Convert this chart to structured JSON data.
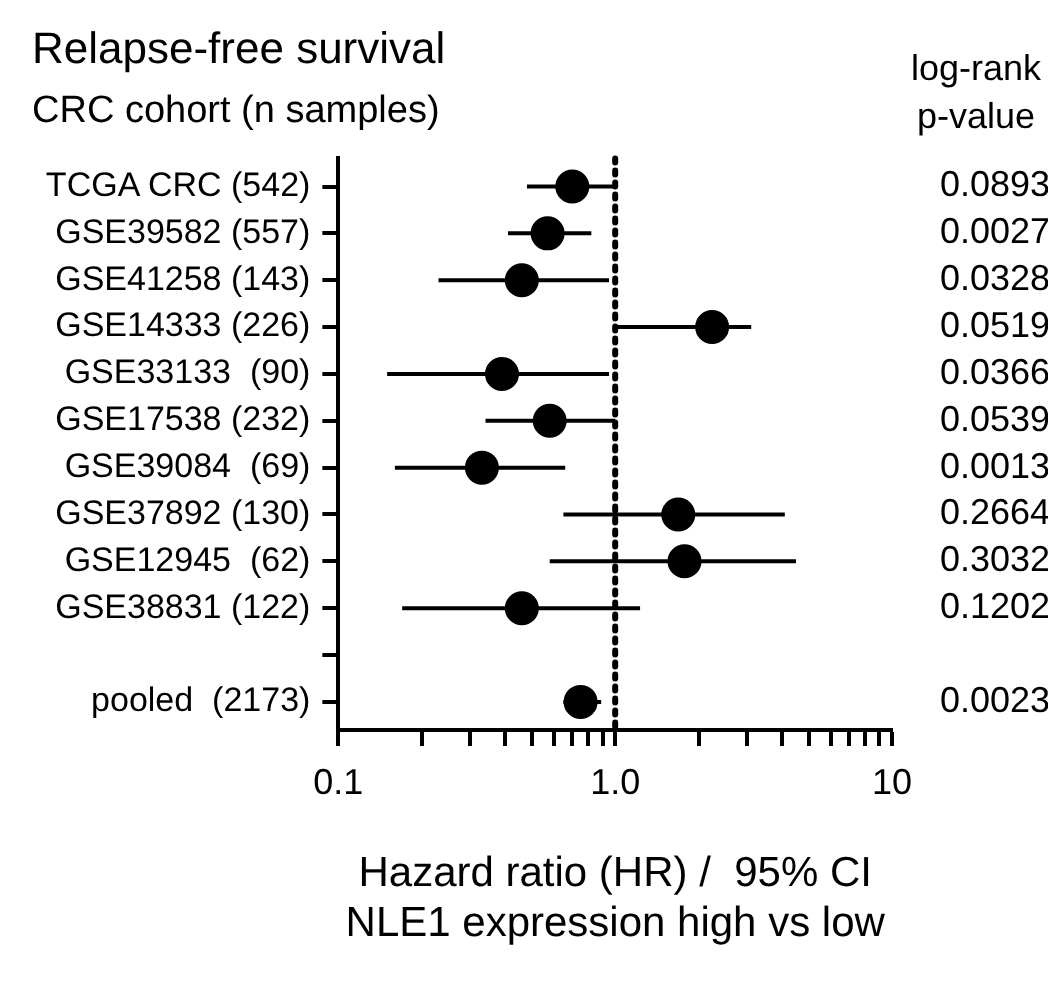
{
  "chart_data": {
    "type": "scatter",
    "title": "Relapse-free survival",
    "subtitle": "CRC cohort (n samples)",
    "xlabel": "Hazard ratio (HR) /  95% CI\nNLE1 expression high vs low",
    "orientation": "horizontal",
    "categories": [
      "TCGA CRC (542)",
      "GSE39582 (557)",
      "GSE41258 (143)",
      "GSE14333 (226)",
      "GSE33133  (90)",
      "GSE17538 (232)",
      "GSE39084  (69)",
      "GSE37892 (130)",
      "GSE12945  (62)",
      "GSE38831 (122)",
      null,
      "pooled  (2173)"
    ],
    "series": [
      {
        "color": "#000000",
        "values": [
          0.7,
          0.57,
          0.46,
          2.24,
          0.39,
          0.58,
          0.33,
          1.69,
          1.78,
          0.46,
          null,
          0.75
        ],
        "errors": [
          [
            0.48,
            1.0
          ],
          [
            0.41,
            0.82
          ],
          [
            0.23,
            0.95
          ],
          [
            0.99,
            3.1
          ],
          [
            0.15,
            0.95
          ],
          [
            0.34,
            1.0
          ],
          [
            0.16,
            0.66
          ],
          [
            0.65,
            4.1
          ],
          [
            0.58,
            4.5
          ],
          [
            0.17,
            1.23
          ],
          null,
          [
            0.65,
            0.89
          ]
        ]
      }
    ],
    "log": "x",
    "xlim": [
      0.1,
      10
    ],
    "xticks": [
      0.1,
      {
        "value": 0.2,
        "label": null
      },
      {
        "value": 0.3,
        "label": null
      },
      {
        "value": 0.4,
        "label": null
      },
      {
        "value": 0.5,
        "label": null
      },
      {
        "value": 0.6,
        "label": null
      },
      {
        "value": 0.7,
        "label": null
      },
      {
        "value": 0.8,
        "label": null
      },
      {
        "value": 0.9,
        "label": null
      },
      {
        "value": 1,
        "label": "1.0"
      },
      {
        "value": 2,
        "label": null
      },
      {
        "value": 3,
        "label": null
      },
      {
        "value": 4,
        "label": null
      },
      {
        "value": 5,
        "label": null
      },
      {
        "value": 6,
        "label": null
      },
      {
        "value": 7,
        "label": null
      },
      {
        "value": 8,
        "label": null
      },
      {
        "value": 9,
        "label": null
      },
      10
    ],
    "ref_lines": [
      {
        "axis": "x",
        "value": 1,
        "line_style": "dotted",
        "color": "#000000"
      }
    ],
    "marker": "circle",
    "grid": false,
    "legend": false,
    "annotations": [
      "log-rank\np-value",
      "0.0893",
      "0.0027",
      "0.0328",
      "0.0519",
      "0.0366",
      "0.0539",
      "0.0013",
      "0.2664",
      "0.3032",
      "0.1202",
      "0.0023"
    ]
  }
}
